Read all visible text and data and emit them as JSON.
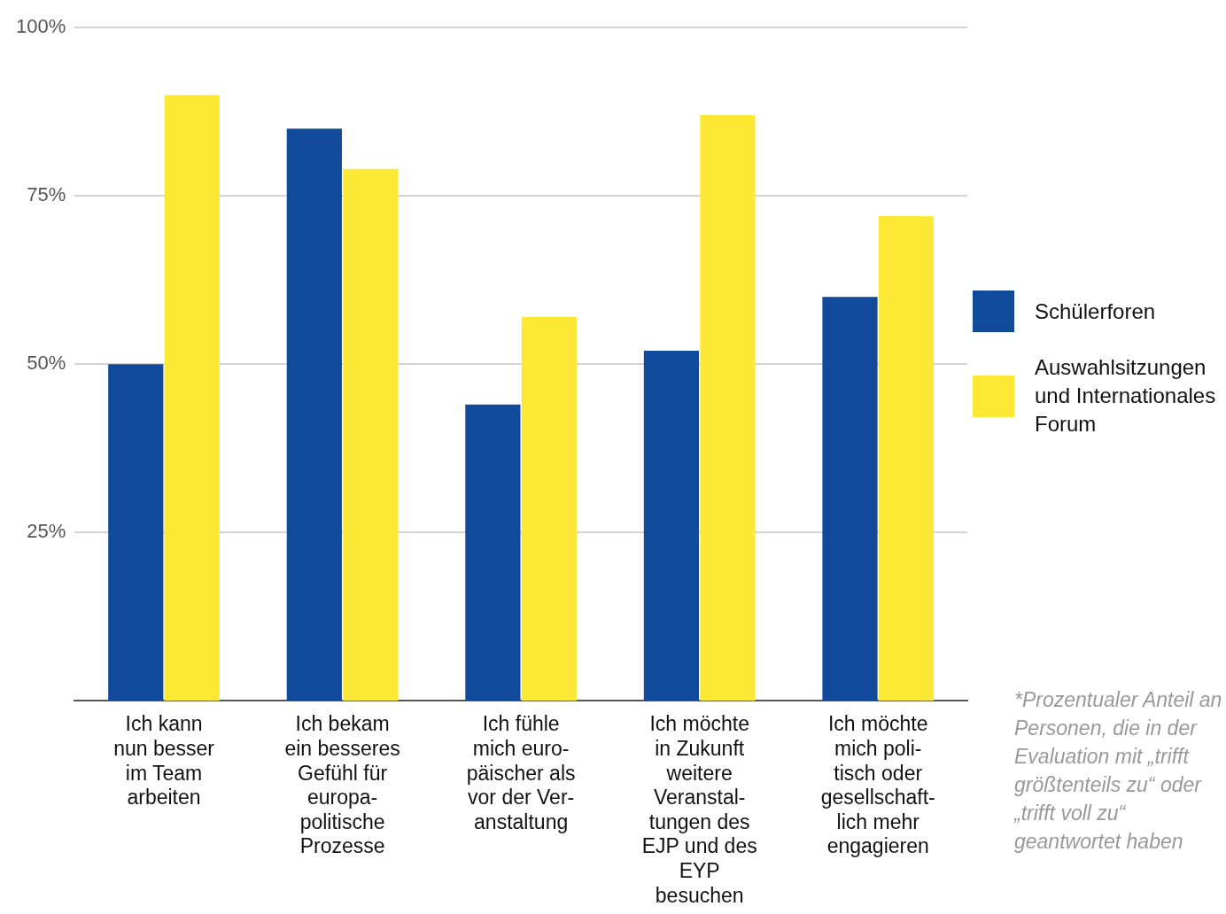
{
  "chart_data": {
    "type": "bar",
    "categories": [
      "Ich kann\nnun besser\nim Team\narbeiten",
      "Ich bekam\nein besseres\nGefühl für\neuropa-\npolitische\nProzesse",
      "Ich fühle\nmich euro-\npäischer als\nvor der Ver-\nanstaltung",
      "Ich möchte\nin Zukunft\nweitere\nVeranstal-\ntungen des\nEJP und des\nEYP\nbesuchen",
      "Ich möchte\nmich poli-\ntisch oder\ngesellschaft-\nlich mehr\nengagieren"
    ],
    "series": [
      {
        "name": "Schülerforen",
        "color": "#114a9a",
        "values": [
          50,
          85,
          44,
          52,
          60
        ]
      },
      {
        "name": "Auswahlsitzungen und Internationales Forum",
        "color": "#fde935",
        "values": [
          90,
          79,
          57,
          87,
          72
        ]
      }
    ],
    "ylim": [
      0,
      100
    ],
    "yticks": [
      {
        "value": 25,
        "label": "25%"
      },
      {
        "value": 50,
        "label": "50%"
      },
      {
        "value": 75,
        "label": "75%"
      },
      {
        "value": 100,
        "label": "100%"
      }
    ],
    "grid": "y",
    "legend": "right",
    "annotations": [
      "*Prozentualer Anteil an Personen, die in der Evaluation mit „trifft größtenteils zu“ oder „trifft voll zu“ geantwortet haben"
    ]
  }
}
